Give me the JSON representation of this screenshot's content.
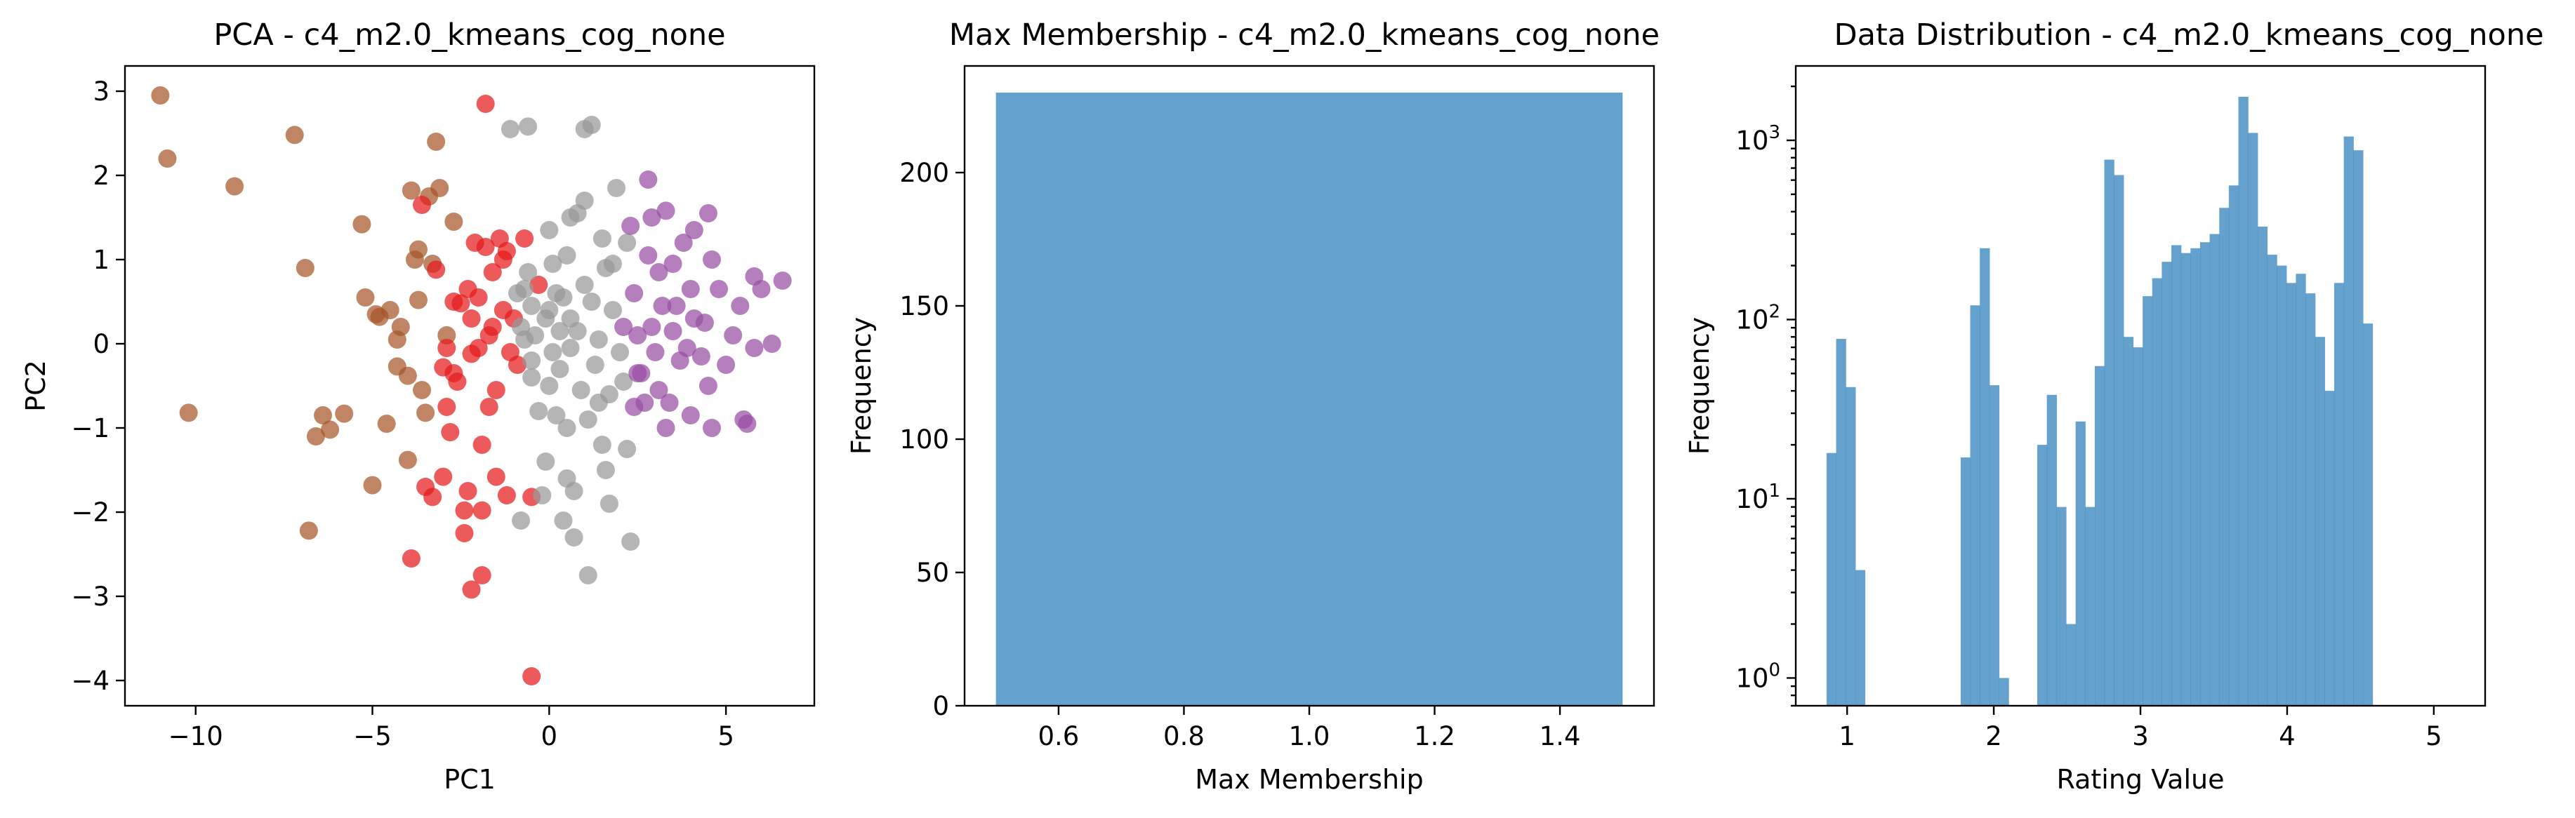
{
  "chart_data": [
    {
      "type": "scatter",
      "title": "PCA - c4_m2.0_kmeans_cog_none",
      "xlabel": "PC1",
      "ylabel": "PC2",
      "xlim": [
        -12,
        7.5
      ],
      "ylim": [
        -4.3,
        3.3
      ],
      "xticks": [
        -10,
        -5,
        0,
        5
      ],
      "yticks": [
        -4,
        -3,
        -2,
        -1,
        0,
        1,
        2,
        3
      ],
      "xtick_labels": [
        "−10",
        "−5",
        "0",
        "5"
      ],
      "ytick_labels": [
        "−4",
        "−3",
        "−2",
        "−1",
        "0",
        "1",
        "2",
        "3"
      ],
      "grid": false,
      "colors": {
        "cluster_a": "#a65628",
        "cluster_b": "#e41a1c",
        "cluster_c": "#999999",
        "cluster_d": "#984ea3"
      },
      "series": [
        {
          "color": "#a65628",
          "points": [
            [
              -11.0,
              2.95
            ],
            [
              -10.8,
              2.2
            ],
            [
              -8.9,
              1.87
            ],
            [
              -7.2,
              2.48
            ],
            [
              -6.9,
              0.9
            ],
            [
              -10.2,
              -0.82
            ],
            [
              -6.8,
              -2.22
            ],
            [
              -6.6,
              -1.1
            ],
            [
              -6.4,
              -0.85
            ],
            [
              -6.2,
              -1.02
            ],
            [
              -5.8,
              -0.83
            ],
            [
              -5.3,
              1.42
            ],
            [
              -5.2,
              0.55
            ],
            [
              -5.0,
              -1.68
            ],
            [
              -4.9,
              0.35
            ],
            [
              -4.8,
              0.32
            ],
            [
              -4.6,
              -0.95
            ],
            [
              -4.5,
              0.4
            ],
            [
              -4.3,
              -0.27
            ],
            [
              -4.2,
              0.2
            ],
            [
              -4.0,
              -1.38
            ],
            [
              -4.0,
              -0.38
            ],
            [
              -3.9,
              1.82
            ],
            [
              -3.8,
              1.0
            ],
            [
              -3.7,
              0.52
            ],
            [
              -3.7,
              1.12
            ],
            [
              -3.6,
              -0.55
            ],
            [
              -3.5,
              -0.82
            ],
            [
              -3.4,
              1.75
            ],
            [
              -3.2,
              2.4
            ],
            [
              -3.1,
              1.85
            ],
            [
              -2.9,
              0.1
            ],
            [
              -2.7,
              1.45
            ],
            [
              -4.3,
              0.05
            ],
            [
              -3.3,
              0.95
            ]
          ]
        },
        {
          "color": "#e41a1c",
          "points": [
            [
              -1.8,
              2.85
            ],
            [
              -3.9,
              -2.55
            ],
            [
              -3.6,
              1.65
            ],
            [
              -3.5,
              -1.7
            ],
            [
              -3.3,
              -1.82
            ],
            [
              -3.2,
              0.88
            ],
            [
              -3.0,
              -1.58
            ],
            [
              -3.0,
              -0.28
            ],
            [
              -2.9,
              -0.05
            ],
            [
              -2.9,
              -0.75
            ],
            [
              -2.8,
              -1.05
            ],
            [
              -2.7,
              0.5
            ],
            [
              -2.7,
              -0.35
            ],
            [
              -2.6,
              -0.45
            ],
            [
              -2.5,
              0.48
            ],
            [
              -2.4,
              -2.25
            ],
            [
              -2.4,
              -1.98
            ],
            [
              -2.3,
              -1.75
            ],
            [
              -2.3,
              0.65
            ],
            [
              -2.2,
              0.3
            ],
            [
              -2.2,
              -0.12
            ],
            [
              -2.2,
              -2.92
            ],
            [
              -2.1,
              1.2
            ],
            [
              -2.0,
              -0.05
            ],
            [
              -1.9,
              -2.75
            ],
            [
              -1.9,
              -1.2
            ],
            [
              -1.8,
              1.15
            ],
            [
              -1.7,
              -0.75
            ],
            [
              -1.7,
              0.1
            ],
            [
              -1.6,
              0.85
            ],
            [
              -1.5,
              -0.55
            ],
            [
              -1.5,
              -1.58
            ],
            [
              -1.4,
              1.25
            ],
            [
              -1.3,
              0.4
            ],
            [
              -1.3,
              1.0
            ],
            [
              -1.2,
              -1.8
            ],
            [
              -1.2,
              1.1
            ],
            [
              -1.1,
              -0.1
            ],
            [
              -1.0,
              0.3
            ],
            [
              -0.9,
              -0.25
            ],
            [
              -0.7,
              1.25
            ],
            [
              -0.5,
              -1.82
            ],
            [
              -0.5,
              -3.95
            ],
            [
              -0.3,
              0.7
            ],
            [
              -1.9,
              -1.98
            ],
            [
              -2.0,
              0.55
            ],
            [
              -1.6,
              0.2
            ]
          ]
        },
        {
          "color": "#999999",
          "points": [
            [
              -1.1,
              2.55
            ],
            [
              -0.6,
              2.58
            ],
            [
              -0.8,
              -2.1
            ],
            [
              -0.8,
              0.2
            ],
            [
              -0.7,
              0.05
            ],
            [
              -0.7,
              0.65
            ],
            [
              -0.6,
              0.85
            ],
            [
              -0.5,
              -0.4
            ],
            [
              -0.5,
              0.45
            ],
            [
              -0.4,
              0.1
            ],
            [
              -0.3,
              -0.8
            ],
            [
              -0.2,
              -1.8
            ],
            [
              -0.1,
              0.3
            ],
            [
              -0.1,
              -1.4
            ],
            [
              0.0,
              1.35
            ],
            [
              0.0,
              -0.5
            ],
            [
              0.1,
              -0.1
            ],
            [
              0.1,
              0.95
            ],
            [
              0.2,
              -0.85
            ],
            [
              0.3,
              0.15
            ],
            [
              0.3,
              -0.3
            ],
            [
              0.4,
              0.55
            ],
            [
              0.4,
              -2.1
            ],
            [
              0.5,
              1.05
            ],
            [
              0.5,
              -1.6
            ],
            [
              0.6,
              0.3
            ],
            [
              0.6,
              -0.05
            ],
            [
              0.7,
              -1.75
            ],
            [
              0.7,
              -2.3
            ],
            [
              0.8,
              1.55
            ],
            [
              0.8,
              0.15
            ],
            [
              0.9,
              -0.55
            ],
            [
              1.0,
              2.55
            ],
            [
              1.0,
              0.7
            ],
            [
              1.1,
              -2.75
            ],
            [
              1.1,
              -0.9
            ],
            [
              1.2,
              0.5
            ],
            [
              1.2,
              2.6
            ],
            [
              1.3,
              -0.25
            ],
            [
              1.4,
              0.05
            ],
            [
              1.5,
              -1.2
            ],
            [
              1.5,
              1.25
            ],
            [
              1.6,
              -1.5
            ],
            [
              1.6,
              0.9
            ],
            [
              1.7,
              -1.9
            ],
            [
              1.7,
              -0.6
            ],
            [
              1.8,
              0.4
            ],
            [
              1.9,
              1.85
            ],
            [
              2.0,
              -0.1
            ],
            [
              2.1,
              -0.45
            ],
            [
              2.2,
              1.2
            ],
            [
              2.2,
              -1.25
            ],
            [
              2.3,
              -2.35
            ],
            [
              -0.9,
              0.6
            ],
            [
              0.5,
              -1.0
            ],
            [
              1.0,
              1.7
            ],
            [
              0.0,
              0.4
            ],
            [
              0.6,
              1.5
            ],
            [
              -0.5,
              -0.2
            ],
            [
              1.8,
              0.95
            ],
            [
              0.2,
              0.6
            ],
            [
              1.4,
              -0.7
            ]
          ]
        },
        {
          "color": "#984ea3",
          "points": [
            [
              2.8,
              1.95
            ],
            [
              3.3,
              1.58
            ],
            [
              4.1,
              1.35
            ],
            [
              4.5,
              1.55
            ],
            [
              4.6,
              1.0
            ],
            [
              2.3,
              1.4
            ],
            [
              2.4,
              0.6
            ],
            [
              2.5,
              0.1
            ],
            [
              2.6,
              -0.35
            ],
            [
              2.7,
              -0.7
            ],
            [
              2.8,
              1.05
            ],
            [
              2.9,
              0.2
            ],
            [
              3.0,
              -0.1
            ],
            [
              3.1,
              0.85
            ],
            [
              3.2,
              0.45
            ],
            [
              3.3,
              -1.0
            ],
            [
              3.4,
              -0.7
            ],
            [
              3.5,
              0.15
            ],
            [
              3.6,
              0.45
            ],
            [
              3.7,
              -0.2
            ],
            [
              3.8,
              1.2
            ],
            [
              3.9,
              -0.05
            ],
            [
              4.0,
              0.65
            ],
            [
              4.1,
              0.3
            ],
            [
              4.3,
              -0.15
            ],
            [
              4.4,
              0.25
            ],
            [
              4.5,
              -0.5
            ],
            [
              4.6,
              -1.0
            ],
            [
              4.8,
              0.65
            ],
            [
              5.0,
              -0.25
            ],
            [
              5.2,
              0.1
            ],
            [
              5.4,
              0.45
            ],
            [
              5.6,
              -0.95
            ],
            [
              5.8,
              0.8
            ],
            [
              6.0,
              0.65
            ],
            [
              6.3,
              0.0
            ],
            [
              6.6,
              0.75
            ],
            [
              5.5,
              -0.9
            ],
            [
              4.0,
              -0.85
            ],
            [
              3.1,
              -0.55
            ],
            [
              2.5,
              -0.35
            ],
            [
              5.8,
              -0.05
            ],
            [
              2.1,
              0.2
            ],
            [
              2.9,
              1.5
            ],
            [
              3.5,
              0.95
            ],
            [
              2.4,
              -0.75
            ]
          ]
        }
      ]
    },
    {
      "type": "bar",
      "title": "Max Membership - c4_m2.0_kmeans_cog_none",
      "xlabel": "Max Membership",
      "ylabel": "Frequency",
      "xlim": [
        0.45,
        1.55
      ],
      "ylim": [
        0,
        240
      ],
      "xticks": [
        0.6,
        0.8,
        1.0,
        1.2,
        1.4
      ],
      "yticks": [
        0,
        50,
        100,
        150,
        200
      ],
      "xtick_labels": [
        "0.6",
        "0.8",
        "1.0",
        "1.2",
        "1.4"
      ],
      "ytick_labels": [
        "0",
        "50",
        "100",
        "150",
        "200"
      ],
      "grid": false,
      "bars": [
        {
          "x0": 0.5,
          "x1": 1.5,
          "value": 230
        }
      ],
      "color": "#4a90c4"
    },
    {
      "type": "bar",
      "title": "Data Distribution - c4_m2.0_kmeans_cog_none",
      "xlabel": "Rating Value",
      "ylabel": "Frequency",
      "log_y": true,
      "xlim": [
        0.65,
        5.35
      ],
      "ylim": [
        0.7,
        2600
      ],
      "xticks": [
        1,
        2,
        3,
        4,
        5
      ],
      "xtick_labels": [
        "1",
        "2",
        "3",
        "4",
        "5"
      ],
      "yticks": [
        1,
        10,
        100,
        1000
      ],
      "ytick_labels": [
        "10",
        "10",
        "10",
        "10"
      ],
      "ytick_exponents": [
        "0",
        "1",
        "2",
        "3"
      ],
      "grid": false,
      "bin_start": 0.86,
      "bin_width": 0.0653,
      "values": [
        18,
        78,
        42,
        4,
        0,
        0,
        0,
        0,
        0,
        0,
        0,
        0,
        0,
        0,
        17,
        120,
        250,
        43,
        1,
        0,
        0,
        0,
        20,
        38,
        9,
        2,
        27,
        9,
        55,
        780,
        640,
        80,
        70,
        135,
        170,
        210,
        260,
        235,
        250,
        270,
        300,
        420,
        560,
        1750,
        1100,
        330,
        230,
        200,
        160,
        180,
        140,
        80,
        40,
        160,
        1050,
        880,
        95
      ],
      "color": "#4a90c4"
    }
  ]
}
